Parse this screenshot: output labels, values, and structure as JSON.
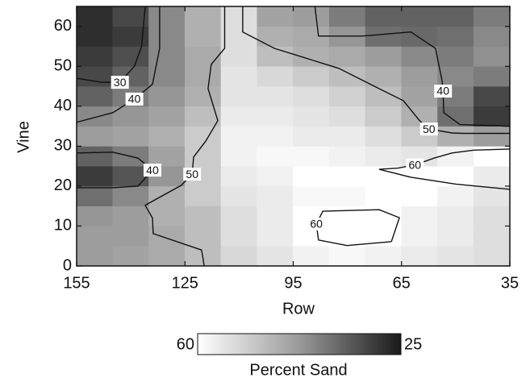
{
  "chart_data": {
    "type": "contour",
    "xlabel": "Row",
    "ylabel": "Vine",
    "xlim": [
      155,
      35
    ],
    "ylim": [
      0,
      65
    ],
    "xticks": [
      155,
      125,
      95,
      65,
      35
    ],
    "yticks": [
      0,
      10,
      20,
      30,
      40,
      50,
      60
    ],
    "x": [
      150,
      140,
      130,
      120,
      110,
      100,
      90,
      80,
      70,
      60,
      50,
      40
    ],
    "y": [
      2.5,
      7.5,
      12.5,
      17.5,
      22.5,
      27.5,
      32.5,
      37.5,
      42.5,
      47.5,
      52.5,
      57.5,
      62.5
    ],
    "z": [
      [
        45,
        46,
        47,
        50,
        54,
        56,
        58,
        59,
        58,
        57,
        56,
        55
      ],
      [
        45,
        45,
        47,
        50,
        55,
        57,
        60,
        63,
        62,
        58,
        57,
        55
      ],
      [
        44,
        45,
        48,
        50,
        55,
        57,
        60,
        62,
        61,
        58,
        57,
        55
      ],
      [
        38,
        42,
        48,
        52,
        56,
        57,
        59,
        59,
        60,
        60,
        58,
        56
      ],
      [
        30,
        34,
        44,
        52,
        57,
        58,
        60,
        60,
        61,
        62,
        60,
        57
      ],
      [
        36,
        40,
        46,
        52,
        58,
        59,
        59,
        58,
        57,
        56,
        58,
        62
      ],
      [
        45,
        46,
        48,
        52,
        58,
        58,
        57,
        57,
        55,
        52,
        48,
        45
      ],
      [
        42,
        44,
        46,
        50,
        57,
        57,
        56,
        55,
        52,
        48,
        38,
        30
      ],
      [
        36,
        40,
        44,
        48,
        56,
        56,
        55,
        53,
        50,
        46,
        40,
        32
      ],
      [
        32,
        36,
        42,
        47,
        56,
        54,
        52,
        50,
        48,
        45,
        42,
        40
      ],
      [
        30,
        33,
        42,
        47,
        55,
        50,
        48,
        47,
        45,
        42,
        40,
        43
      ],
      [
        28,
        30,
        42,
        48,
        55,
        48,
        47,
        44,
        38,
        37,
        38,
        42
      ],
      [
        28,
        32,
        42,
        48,
        55,
        46,
        45,
        40,
        36,
        36,
        36,
        40
      ]
    ],
    "contours": [
      {
        "level": 30,
        "x": [
          155,
          148,
          143,
          139,
          137,
          136
        ],
        "y": [
          47,
          46,
          46,
          50,
          55,
          65
        ]
      },
      {
        "level": 40,
        "x": [
          155,
          145,
          139,
          134,
          132,
          132
        ],
        "y": [
          36,
          38.4,
          41.8,
          45.5,
          54.5,
          65
        ]
      },
      {
        "level": 40,
        "x": [
          155,
          145,
          138,
          134,
          138,
          145,
          155
        ],
        "y": [
          28.3,
          28.5,
          27,
          24,
          20,
          19.6,
          19.6
        ]
      },
      {
        "level": 50,
        "x": [
          114,
          114,
          117.7,
          118.6,
          115.9,
          119.2,
          122.6,
          123,
          126,
          136,
          134,
          133.8,
          120.4,
          120,
          119.7
        ],
        "y": [
          65,
          54.5,
          50.5,
          44.4,
          36.4,
          31.3,
          27.3,
          23,
          20.2,
          15.2,
          12,
          8.1,
          4,
          2,
          0
        ]
      },
      {
        "level": 50,
        "x": [
          109,
          109,
          100.2,
          82.4,
          71.2,
          64.5,
          60,
          57.4,
          51,
          48,
          45,
          42,
          40,
          38,
          35
        ],
        "y": [
          65,
          58.6,
          54.5,
          49.5,
          44.4,
          41.4,
          36.4,
          34.3,
          33.3,
          33.2,
          33.2,
          33.2,
          33.2,
          33.2,
          33.2
        ]
      },
      {
        "level": 40,
        "x": [
          89,
          88,
          75.7,
          62.4,
          55.6,
          53.8,
          53.5,
          53.3,
          48.8,
          42,
          38,
          36.5,
          35
        ],
        "y": [
          65,
          57.6,
          57.6,
          58.6,
          54.5,
          46.5,
          43.8,
          38.4,
          35.4,
          35.2,
          35.1,
          35,
          35
        ]
      },
      {
        "level": 60,
        "x": [
          35,
          45,
          51,
          56,
          61.3,
          66,
          71.2,
          62.4,
          50,
          35
        ],
        "y": [
          29.3,
          29,
          28.3,
          27,
          25.3,
          24.5,
          24.2,
          22.2,
          20.5,
          19.2
        ]
      },
      {
        "level": 60,
        "x": [
          67.8,
          80.1,
          88,
          88.6,
          86.8,
          71.2,
          65.6,
          67.8
        ],
        "y": [
          6.1,
          5.1,
          6.5,
          10.5,
          13.7,
          14.1,
          12.1,
          6.1
        ]
      }
    ],
    "clim": [
      60,
      25
    ],
    "colorbar_label": "Percent Sand"
  }
}
